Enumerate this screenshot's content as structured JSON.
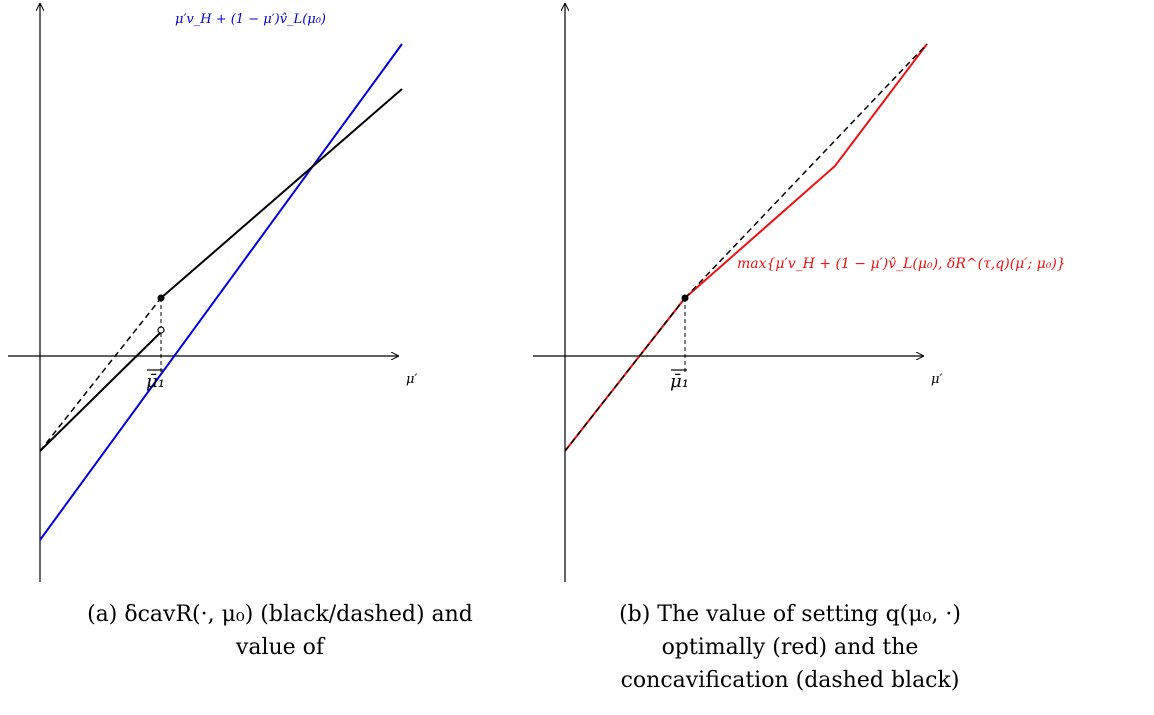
{
  "panel_a": {
    "blue_line_label": "μ′v_H + (1 − μ′)v̂_L(μ₀)",
    "x_tick_label": "μ̄₁",
    "x_axis_label": "μ′",
    "caption": "(a) δcavR(·, μ₀) (black/dashed) and value of"
  },
  "panel_b": {
    "red_line_label": "max{μ′v_H + (1 − μ′)v̂_L(μ₀), δR^(τ,q)(μ′; μ₀)}",
    "x_tick_label": "μ̄₁",
    "x_axis_label": "μ′",
    "caption": "(b) The value of setting q(μ₀, ·) optimally (red) and the concavification (dashed black)"
  },
  "colors": {
    "axis": "#000000",
    "blue_line": "#0000dd",
    "red_line": "#ee1111",
    "black_line": "#000000"
  }
}
